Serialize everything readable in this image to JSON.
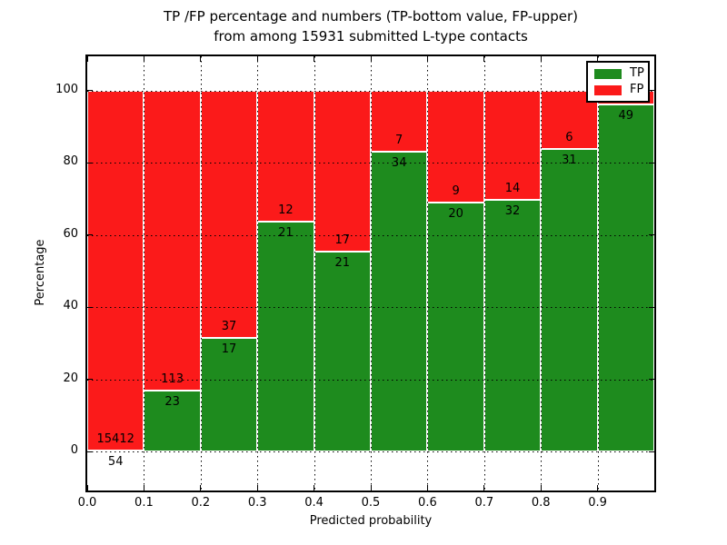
{
  "chart_data": {
    "type": "bar",
    "stacked": true,
    "title_line1": "TP /FP percentage and numbers (TP-bottom value, FP-upper)",
    "title_line2": "from among 15931 submitted L-type contacts",
    "xlabel": "Predicted probability",
    "ylabel": "Percentage",
    "x_tick_labels": [
      "0.0",
      "0.1",
      "0.2",
      "0.3",
      "0.4",
      "0.5",
      "0.6",
      "0.7",
      "0.8",
      "0.9"
    ],
    "y_ticks": [
      0,
      20,
      40,
      60,
      80,
      100
    ],
    "xlim": [
      0.0,
      1.0
    ],
    "ylim": [
      -11,
      110
    ],
    "bin_edges": [
      0.0,
      0.1,
      0.2,
      0.3,
      0.4,
      0.5,
      0.6,
      0.7,
      0.8,
      0.9,
      1.0
    ],
    "series": [
      {
        "name": "TP",
        "color": "#1e8b1e",
        "position": "bottom",
        "counts": [
          54,
          23,
          17,
          21,
          21,
          34,
          20,
          32,
          31,
          49
        ]
      },
      {
        "name": "FP",
        "color": "#fb1a1a",
        "position": "top",
        "counts": [
          15412,
          113,
          37,
          12,
          17,
          7,
          9,
          14,
          6,
          null
        ]
      }
    ],
    "tp_percent": [
      0.35,
      16.91,
      31.48,
      63.64,
      55.26,
      82.93,
      68.97,
      69.57,
      83.78,
      96.08
    ],
    "stack_total_percent": 100,
    "grid": "dotted",
    "legend": {
      "position": "upper right",
      "entries": [
        "TP",
        "FP"
      ]
    }
  }
}
